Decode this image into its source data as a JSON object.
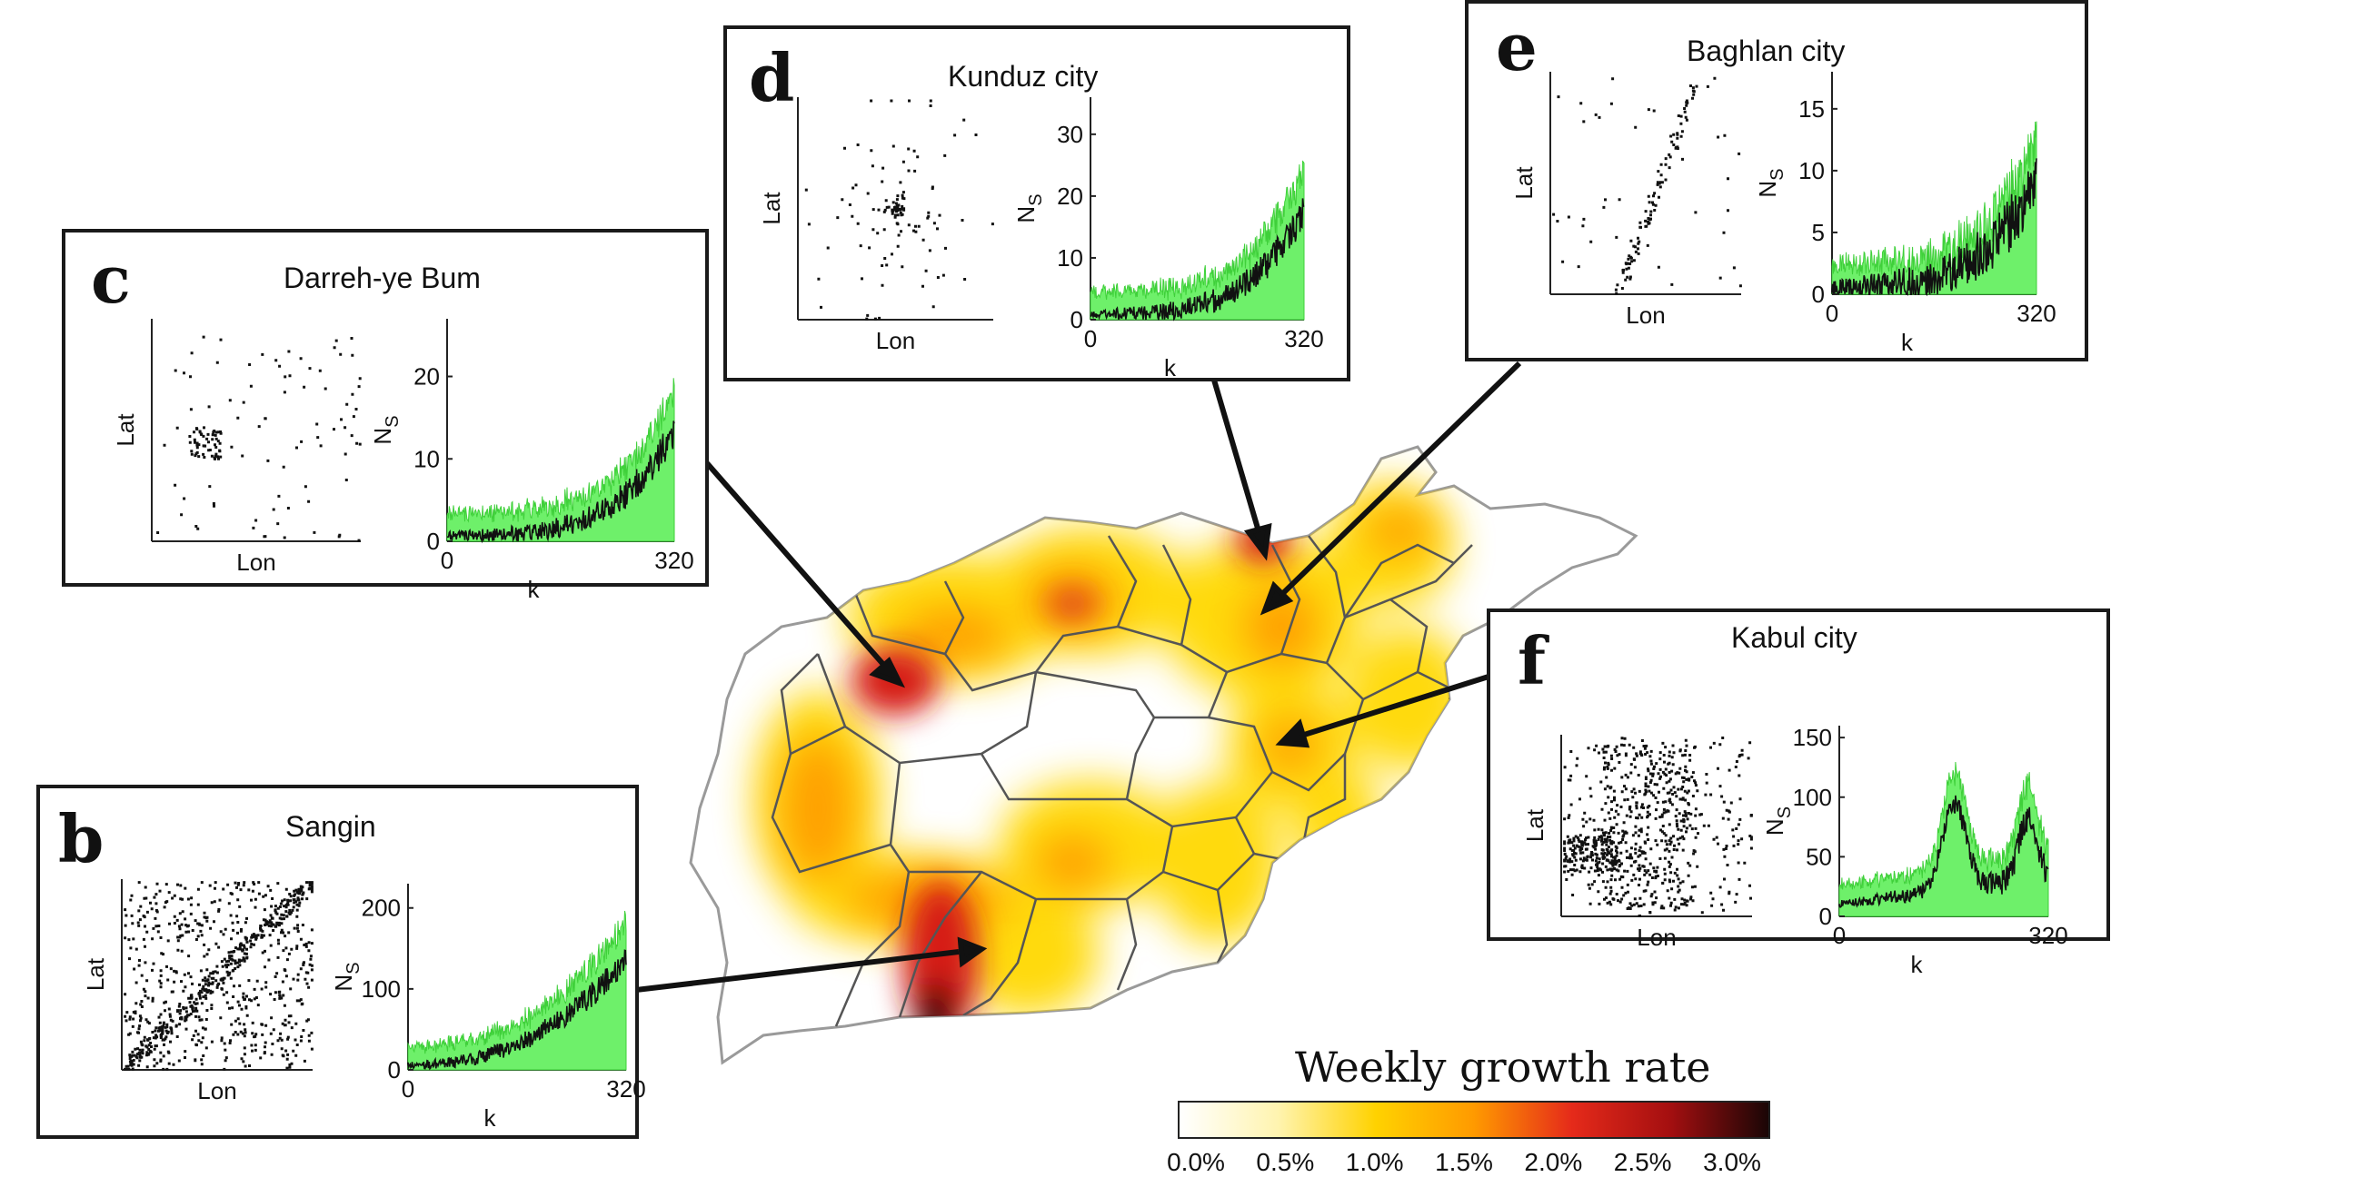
{
  "legend": {
    "title": "Weekly growth rate",
    "ticks": [
      "0.0%",
      "0.5%",
      "1.0%",
      "1.5%",
      "2.0%",
      "2.5%",
      "3.0%"
    ],
    "colors": [
      "#ffffff",
      "#fff4b0",
      "#ffd200",
      "#ff9a00",
      "#e52a1a",
      "#a40f10",
      "#1a0606"
    ]
  },
  "panels": [
    {
      "id": "b",
      "letter": "b",
      "title": "Sangin",
      "x_label": "Lon",
      "y_label": "Lat",
      "ns_label": "N",
      "ns_sub": "S",
      "k_label": "k",
      "k_ticks": [
        "0",
        "320"
      ],
      "ns_ticks": [
        "0",
        "100",
        "200"
      ],
      "ns_max": 230
    },
    {
      "id": "c",
      "letter": "c",
      "title": "Darreh-ye Bum",
      "x_label": "Lon",
      "y_label": "Lat",
      "ns_label": "N",
      "ns_sub": "S",
      "k_label": "k",
      "k_ticks": [
        "0",
        "320"
      ],
      "ns_ticks": [
        "0",
        "10",
        "20"
      ],
      "ns_max": 27
    },
    {
      "id": "d",
      "letter": "d",
      "title": "Kunduz city",
      "x_label": "Lon",
      "y_label": "Lat",
      "ns_label": "N",
      "ns_sub": "S",
      "k_label": "k",
      "k_ticks": [
        "0",
        "320"
      ],
      "ns_ticks": [
        "0",
        "10",
        "20",
        "30"
      ],
      "ns_max": 36
    },
    {
      "id": "e",
      "letter": "e",
      "title": "Baghlan city",
      "x_label": "Lon",
      "y_label": "Lat",
      "ns_label": "N",
      "ns_sub": "S",
      "k_label": "k",
      "k_ticks": [
        "0",
        "320"
      ],
      "ns_ticks": [
        "0",
        "5",
        "10",
        "15"
      ],
      "ns_max": 18
    },
    {
      "id": "f",
      "letter": "f",
      "title": "Kabul city",
      "x_label": "Lon",
      "y_label": "Lat",
      "ns_label": "N",
      "ns_sub": "S",
      "k_label": "k",
      "k_ticks": [
        "0",
        "320"
      ],
      "ns_ticks": [
        "0",
        "50",
        "100",
        "150"
      ],
      "ns_max": 160
    }
  ]
}
